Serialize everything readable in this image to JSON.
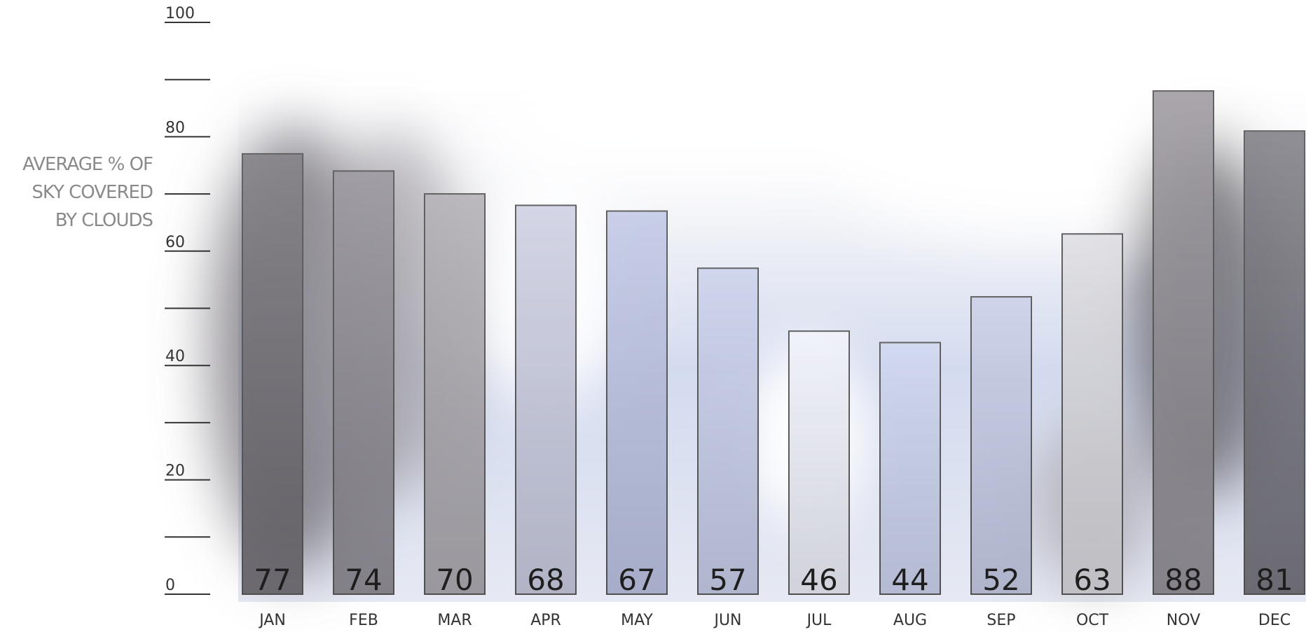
{
  "chart_data": {
    "type": "bar",
    "y_label": [
      "AVERAGE % OF",
      "SKY COVERED",
      "BY CLOUDS"
    ],
    "categories": [
      "JAN",
      "FEB",
      "MAR",
      "APR",
      "MAY",
      "JUN",
      "JUL",
      "AUG",
      "SEP",
      "OCT",
      "NOV",
      "DEC"
    ],
    "values": [
      77,
      74,
      70,
      68,
      67,
      57,
      46,
      44,
      52,
      63,
      88,
      81
    ],
    "colors": [
      "#6f6b72",
      "#8c8891",
      "#a9a5ac",
      "#c6cadf",
      "#b9c1e2",
      "#c4cce9",
      "#eef1fb",
      "#c9d1ee",
      "#c3cae6",
      "#d9d9df",
      "#8f8b92",
      "#6e6d75"
    ],
    "ylim": [
      0,
      100
    ],
    "yticks": [
      0,
      20,
      40,
      60,
      80,
      100
    ],
    "minor_yticks": [
      10,
      30,
      50,
      70,
      90
    ]
  }
}
